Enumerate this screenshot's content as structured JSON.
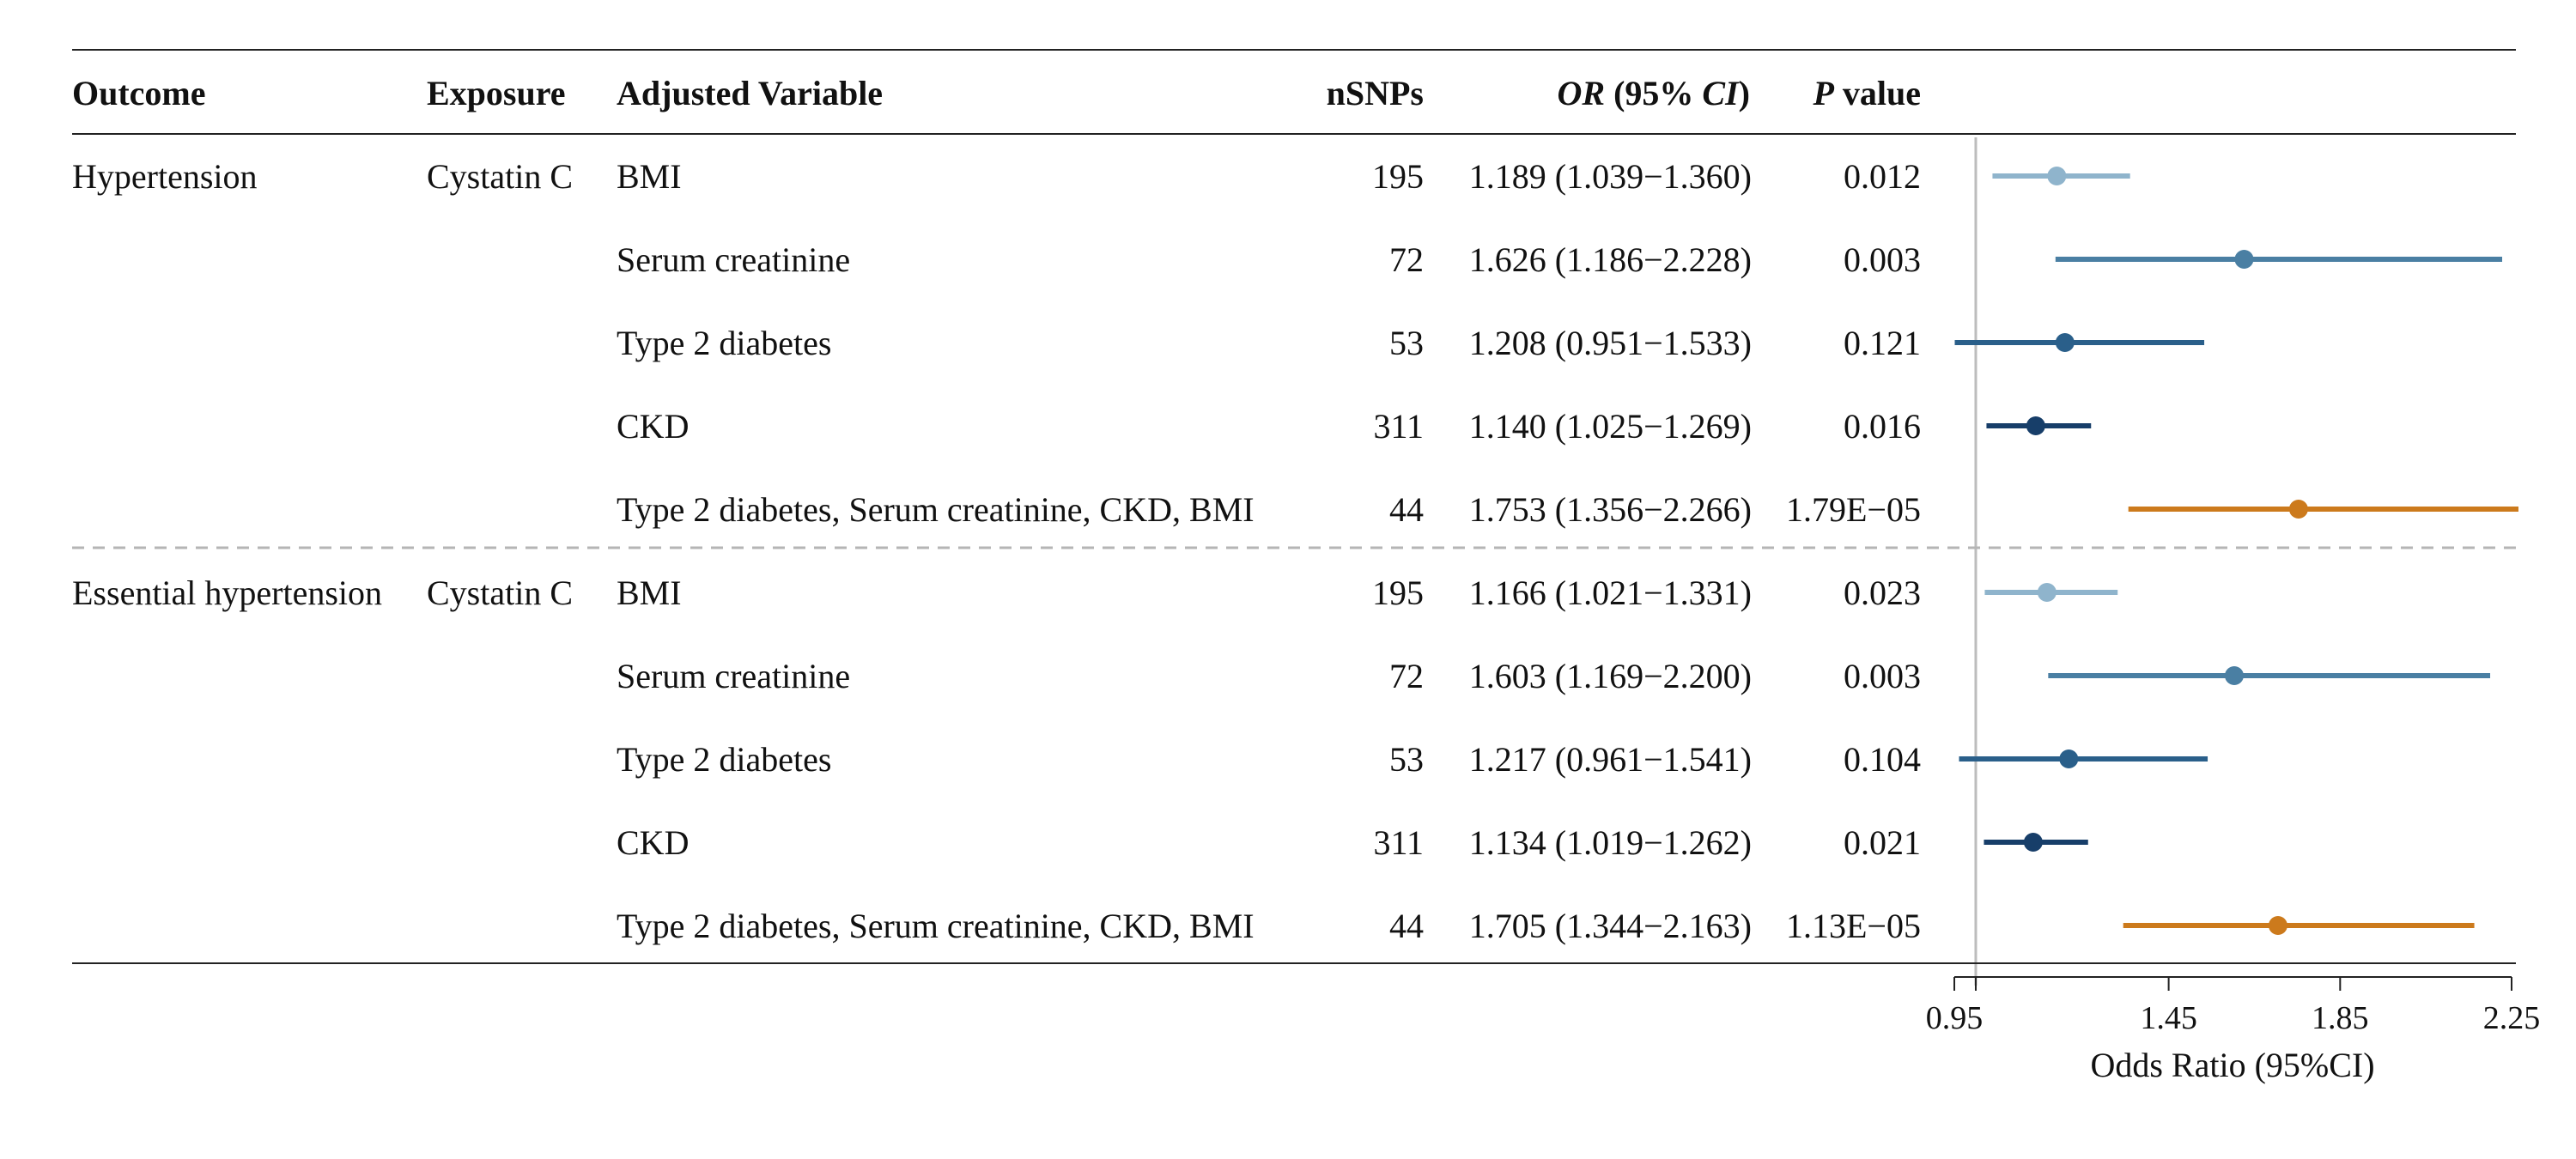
{
  "headers": {
    "outcome": "Outcome",
    "exposure": "Exposure",
    "adjusted": "Adjusted Variable",
    "nsnps": "nSNPs",
    "or_italic": "OR",
    "or_paren_open": " (95% ",
    "or_ci_italic": "CI",
    "or_paren_close": ")",
    "p_italic": "P",
    "p_rest": " value"
  },
  "colors": {
    "BMI": "#8fb4cc",
    "Serum creatinine": "#4a7fa3",
    "Type 2 diabetes": "#2a5f8a",
    "CKD": "#173e69",
    "Type 2 diabetes, Serum creatinine, CKD, BMI": "#cc7a1c"
  },
  "chart_data": {
    "type": "forest",
    "xlabel": "Odds Ratio (95%CI)",
    "xlim": [
      0.95,
      2.25
    ],
    "ticks": [
      0.95,
      1.45,
      1.85,
      2.25
    ],
    "reference_line": 1.0,
    "rows": [
      {
        "outcome": "Hypertension",
        "exposure": "Cystatin C",
        "adjusted": "BMI",
        "nsnps": "195",
        "or_text": "1.189 (1.039−1.360)",
        "p": "0.012",
        "or": 1.189,
        "lo": 1.039,
        "hi": 1.36
      },
      {
        "outcome": "",
        "exposure": "",
        "adjusted": "Serum creatinine",
        "nsnps": "72",
        "or_text": "1.626 (1.186−2.228)",
        "p": "0.003",
        "or": 1.626,
        "lo": 1.186,
        "hi": 2.228
      },
      {
        "outcome": "",
        "exposure": "",
        "adjusted": "Type 2 diabetes",
        "nsnps": "53",
        "or_text": "1.208 (0.951−1.533)",
        "p": "0.121",
        "or": 1.208,
        "lo": 0.951,
        "hi": 1.533
      },
      {
        "outcome": "",
        "exposure": "",
        "adjusted": "CKD",
        "nsnps": "311",
        "or_text": "1.140 (1.025−1.269)",
        "p": "0.016",
        "or": 1.14,
        "lo": 1.025,
        "hi": 1.269
      },
      {
        "outcome": "",
        "exposure": "",
        "adjusted": "Type 2 diabetes, Serum creatinine, CKD, BMI",
        "nsnps": "44",
        "or_text": "1.753 (1.356−2.266)",
        "p": "1.79E−05",
        "or": 1.753,
        "lo": 1.356,
        "hi": 2.266
      },
      {
        "outcome": "Essential hypertension",
        "exposure": "Cystatin C",
        "adjusted": "BMI",
        "nsnps": "195",
        "or_text": "1.166 (1.021−1.331)",
        "p": "0.023",
        "or": 1.166,
        "lo": 1.021,
        "hi": 1.331
      },
      {
        "outcome": "",
        "exposure": "",
        "adjusted": "Serum creatinine",
        "nsnps": "72",
        "or_text": "1.603 (1.169−2.200)",
        "p": "0.003",
        "or": 1.603,
        "lo": 1.169,
        "hi": 2.2
      },
      {
        "outcome": "",
        "exposure": "",
        "adjusted": "Type 2 diabetes",
        "nsnps": "53",
        "or_text": "1.217 (0.961−1.541)",
        "p": "0.104",
        "or": 1.217,
        "lo": 0.961,
        "hi": 1.541
      },
      {
        "outcome": "",
        "exposure": "",
        "adjusted": "CKD",
        "nsnps": "311",
        "or_text": "1.134 (1.019−1.262)",
        "p": "0.021",
        "or": 1.134,
        "lo": 1.019,
        "hi": 1.262
      },
      {
        "outcome": "",
        "exposure": "",
        "adjusted": "Type 2 diabetes, Serum creatinine, CKD, BMI",
        "nsnps": "44",
        "or_text": "1.705 (1.344−2.163)",
        "p": "1.13E−05",
        "or": 1.705,
        "lo": 1.344,
        "hi": 2.163
      }
    ]
  }
}
